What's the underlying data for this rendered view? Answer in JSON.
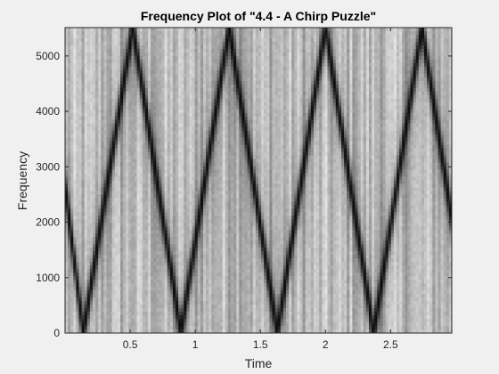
{
  "chart_data": {
    "type": "heatmap",
    "title": "Frequency Plot of \"4.4 - A Chirp Puzzle\"",
    "xlabel": "Time",
    "ylabel": "Frequency",
    "xlim": [
      0,
      2.97
    ],
    "ylim": [
      0,
      5512
    ],
    "x_ticks": [
      0.5,
      1,
      1.5,
      2,
      2.5
    ],
    "x_tick_labels": [
      "0.5",
      "1",
      "1.5",
      "2",
      "2.5"
    ],
    "y_ticks": [
      0,
      1000,
      2000,
      3000,
      4000,
      5000
    ],
    "y_tick_labels": [
      "0",
      "1000",
      "2000",
      "3000",
      "4000",
      "5000"
    ],
    "colormap": "gray",
    "grid": false,
    "ridge": {
      "description_type": "piecewise-linear",
      "time": [
        0.0,
        0.14,
        0.52,
        0.89,
        1.26,
        1.63,
        2.0,
        2.37,
        2.74,
        2.97
      ],
      "frequency": [
        2650,
        0,
        5512,
        0,
        5512,
        0,
        5512,
        0,
        5512,
        2050
      ]
    }
  }
}
